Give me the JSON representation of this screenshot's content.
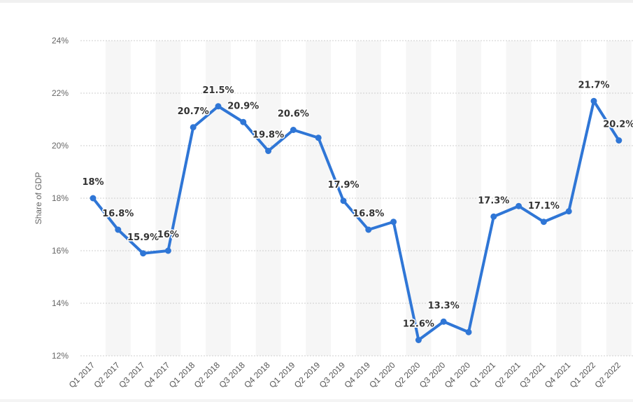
{
  "chart_data": {
    "type": "line",
    "ylabel": "Share of GDP",
    "xlabel": "",
    "ylim": [
      12,
      24
    ],
    "yticks": [
      12,
      14,
      16,
      18,
      20,
      22,
      24
    ],
    "ytick_labels": [
      "12%",
      "14%",
      "16%",
      "18%",
      "20%",
      "22%",
      "24%"
    ],
    "grid": true,
    "accent_color": "#2f76d6",
    "categories": [
      "Q1 2017",
      "Q2 2017",
      "Q3 2017",
      "Q4 2017",
      "Q1 2018",
      "Q2 2018",
      "Q3 2018",
      "Q4 2018",
      "Q1 2019",
      "Q2 2019",
      "Q3 2019",
      "Q4 2019",
      "Q1 2020",
      "Q2 2020",
      "Q3 2020",
      "Q4 2020",
      "Q1 2021",
      "Q2 2021",
      "Q3 2021",
      "Q4 2021",
      "Q1 2022",
      "Q2 2022"
    ],
    "values": [
      18.0,
      16.8,
      15.9,
      16.0,
      20.7,
      21.5,
      20.9,
      19.8,
      20.6,
      20.3,
      17.9,
      16.8,
      17.1,
      12.6,
      13.3,
      12.9,
      17.3,
      17.7,
      17.1,
      17.5,
      21.7,
      20.2
    ],
    "data_labels": [
      "18%",
      "16.8%",
      "15.9%",
      "16%",
      "20.7%",
      "21.5%",
      "20.9%",
      "19.8%",
      "20.6%",
      "",
      "17.9%",
      "16.8%",
      "",
      "12.6%",
      "13.3%",
      "",
      "17.3%",
      "",
      "17.1%",
      "",
      "21.7%",
      "20.2%"
    ]
  }
}
